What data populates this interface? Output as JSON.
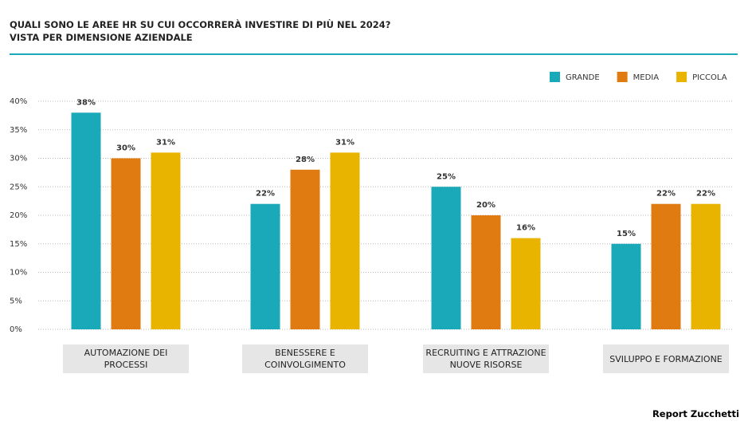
{
  "chart_data": {
    "type": "bar",
    "title": "QUALI SONO LE AREE HR SU CUI OCCORRERÀ INVESTIRE DI PIÙ NEL 2024?",
    "subtitle": "VISTA PER DIMENSIONE AZIENDALE",
    "source": "Report Zucchetti",
    "categories": [
      "AUTOMAZIONE DEI PROCESSI",
      "BENESSERE E COINVOLGIMENTO",
      "RECRUITING E ATTRAZIONE NUOVE RISORSE",
      "SVILUPPO E FORMAZIONE"
    ],
    "series": [
      {
        "name": "GRANDE",
        "color": "#1aa9b8",
        "values": [
          38,
          22,
          25,
          15
        ],
        "value_labels": [
          "38%",
          "22%",
          "25%",
          "15%"
        ]
      },
      {
        "name": "MEDIA",
        "color": "#e07b12",
        "values": [
          30,
          28,
          20,
          22
        ],
        "value_labels": [
          "30%",
          "28%",
          "20%",
          "22%"
        ]
      },
      {
        "name": "PICCOLA",
        "color": "#e8b400",
        "values": [
          31,
          31,
          16,
          22
        ],
        "value_labels": [
          "31%",
          "31%",
          "16%",
          "22%"
        ]
      }
    ],
    "ylim": [
      0,
      40
    ],
    "yticks": [
      {
        "value": 0,
        "label": "0%"
      },
      {
        "value": 5,
        "label": "5%"
      },
      {
        "value": 10,
        "label": "10%"
      },
      {
        "value": 15,
        "label": "15%"
      },
      {
        "value": 20,
        "label": "20%"
      },
      {
        "value": 25,
        "label": "25%"
      },
      {
        "value": 30,
        "label": "30%"
      },
      {
        "value": 35,
        "label": "35%"
      },
      {
        "value": 40,
        "label": "40%"
      }
    ],
    "grid": true,
    "legend": "top-right"
  }
}
